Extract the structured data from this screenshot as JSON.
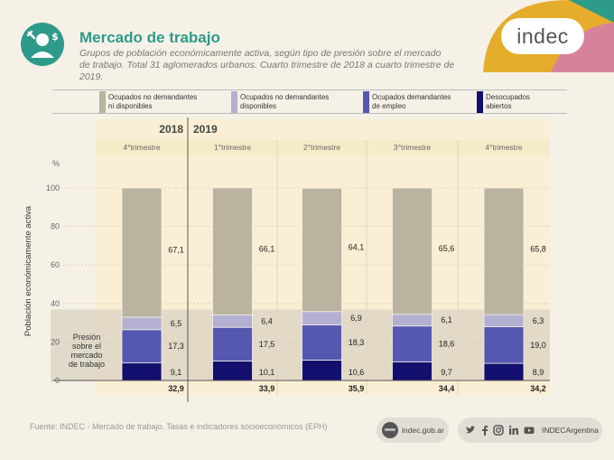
{
  "header": {
    "title": "Mercado de trabajo",
    "subtitle_line1": "Grupos de población económicamente activa, según tipo de presión sobre el mercado",
    "subtitle_line2": "de trabajo. Total 31 aglomerados urbanos. Cuarto trimestre de 2018 a cuarto trimestre de 2019.",
    "logo_text": "indec",
    "icon": "worker-money-icon"
  },
  "legend": [
    {
      "label_line1": "Ocupados no demandantes",
      "label_line2": "ni disponibles",
      "color": "#bab3a0"
    },
    {
      "label_line1": "Ocupados no demandantes",
      "label_line2": "disponibles",
      "color": "#b3b0d2"
    },
    {
      "label_line1": "Ocupados demandantes",
      "label_line2": "de empleo",
      "color": "#5558b0"
    },
    {
      "label_line1": "Desocupados",
      "label_line2": "abiertos",
      "color": "#130f6e"
    }
  ],
  "chart_data": {
    "type": "bar",
    "stacked": true,
    "years": [
      "2018",
      "2019"
    ],
    "categories": [
      "4°trimestre",
      "1°trimestre",
      "2°trimestre",
      "3°trimestre",
      "4°trimestre"
    ],
    "series": [
      {
        "name": "Desocupados abiertos",
        "values": [
          9.1,
          10.1,
          10.6,
          9.7,
          8.9
        ],
        "labels": [
          "9,1",
          "10,1",
          "10,6",
          "9,7",
          "8,9"
        ],
        "color": "#130f6e"
      },
      {
        "name": "Ocupados demandantes de empleo",
        "values": [
          17.3,
          17.5,
          18.3,
          18.6,
          19.0
        ],
        "labels": [
          "17,3",
          "17,5",
          "18,3",
          "18,6",
          "19,0"
        ],
        "color": "#5558b0"
      },
      {
        "name": "Ocupados no demandantes disponibles",
        "values": [
          6.5,
          6.4,
          6.9,
          6.1,
          6.3
        ],
        "labels": [
          "6,5",
          "6,4",
          "6,9",
          "6,1",
          "6,3"
        ],
        "color": "#b3b0d2"
      },
      {
        "name": "Ocupados no demandantes ni disponibles",
        "values": [
          67.1,
          66.1,
          64.1,
          65.6,
          65.8
        ],
        "labels": [
          "67,1",
          "66,1",
          "64,1",
          "65,6",
          "65,8"
        ],
        "color": "#bab3a0"
      }
    ],
    "pressure_totals": [
      32.9,
      33.9,
      35.9,
      34.4,
      34.2
    ],
    "pressure_labels": [
      "32,9",
      "33,9",
      "35,9",
      "34,4",
      "34,2"
    ],
    "pressure_label": [
      "Presión",
      "sobre el",
      "mercado",
      "de trabajo"
    ],
    "ylabel": "Población económicamente activa",
    "yunit": "%",
    "ylim": [
      0,
      100
    ],
    "yticks": [
      "0",
      "20",
      "40",
      "60",
      "80",
      "100"
    ],
    "grid": true
  },
  "footer": {
    "source": "Fuente: INDEC - Mercado de trabajo. Tasas e indicadores socioeconómicos (EPH)",
    "web_badge": "www",
    "website": "indec.gob.ar",
    "social_handle": "INDECArgentina",
    "social_icons": [
      "twitter-icon",
      "facebook-icon",
      "instagram-icon",
      "linkedin-icon",
      "youtube-icon"
    ]
  }
}
